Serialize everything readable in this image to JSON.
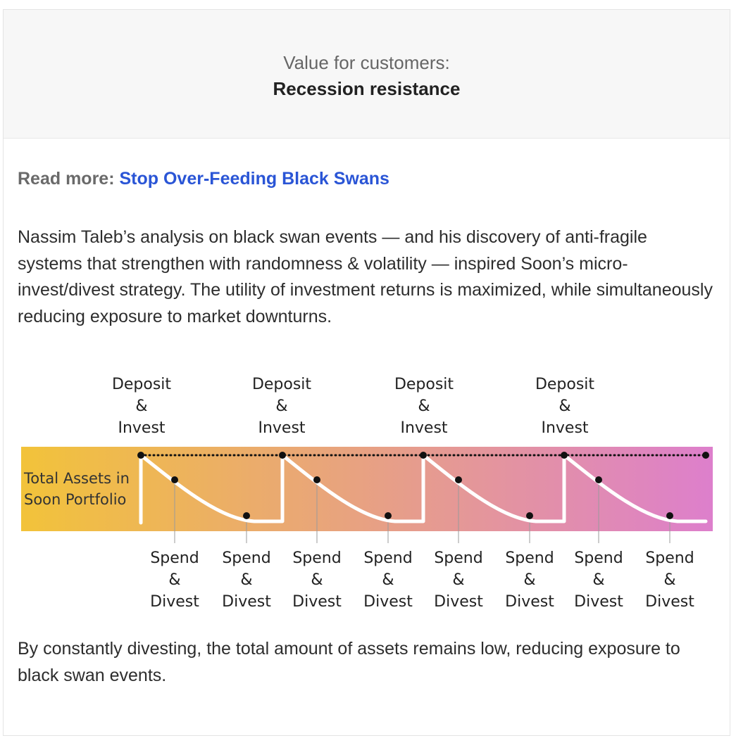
{
  "header": {
    "subtitle": "Value for customers:",
    "title": "Recession resistance"
  },
  "read_more": {
    "label": "Read more:",
    "link_text": "Stop Over-Feeding Black Swans"
  },
  "paragraphs": {
    "intro": "Nassim Taleb’s analysis on black swan events — and his discovery of anti-fragile systems that strengthen with randomness & volatility — inspired Soon’s micro-invest/divest strategy. The utility of investment returns is maximized, while simultaneously reducing exposure to market downturns.",
    "conclusion": "By constantly divesting, the total amount of assets remains low, reducing exposure to black swan events."
  },
  "diagram": {
    "band_label_line1": "Total Assets in",
    "band_label_line2": "Soon Portfolio",
    "top_label": [
      "Deposit",
      "&",
      "Invest"
    ],
    "bottom_label": [
      "Spend",
      "&",
      "Divest"
    ],
    "deposit_count": 4,
    "divest_count": 8,
    "colors": {
      "gradient_start": "#f2c33a",
      "gradient_end": "#dd7fcc",
      "curve": "#ffffff",
      "marker": "#111111"
    }
  }
}
